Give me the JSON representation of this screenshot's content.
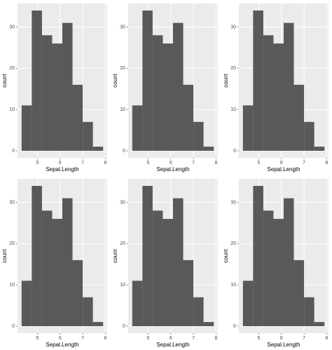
{
  "chart_data": [
    {
      "type": "histogram",
      "xlabel": "Sepal.Length",
      "ylabel": "count",
      "bins": [
        4.3,
        4.75,
        5.2,
        5.65,
        6.1,
        6.55,
        7.0,
        7.45,
        7.9
      ],
      "values": [
        11,
        34,
        28,
        26,
        31,
        16,
        7,
        1
      ],
      "color": "#595959",
      "xlim": [
        4.12,
        8.08
      ],
      "ylim": [
        -1.7,
        35.7
      ],
      "xticks": [
        5,
        6,
        7,
        8
      ],
      "yticks": [
        0,
        10,
        20,
        30
      ],
      "grid": true
    },
    {
      "type": "histogram",
      "xlabel": "Sepal.Length",
      "ylabel": "count",
      "bins": [
        4.3,
        4.75,
        5.2,
        5.65,
        6.1,
        6.55,
        7.0,
        7.45,
        7.9
      ],
      "values": [
        11,
        34,
        28,
        26,
        31,
        16,
        7,
        1
      ],
      "color": "#595959",
      "xlim": [
        4.12,
        8.08
      ],
      "ylim": [
        -1.7,
        35.7
      ],
      "xticks": [
        5,
        6,
        7,
        8
      ],
      "yticks": [
        0,
        10,
        20,
        30
      ],
      "grid": true
    },
    {
      "type": "histogram",
      "xlabel": "Sepal.Length",
      "ylabel": "count",
      "bins": [
        4.3,
        4.75,
        5.2,
        5.65,
        6.1,
        6.55,
        7.0,
        7.45,
        7.9
      ],
      "values": [
        11,
        34,
        28,
        26,
        31,
        16,
        7,
        1
      ],
      "color": "#595959",
      "xlim": [
        4.12,
        8.08
      ],
      "ylim": [
        -1.7,
        35.7
      ],
      "xticks": [
        5,
        6,
        7,
        8
      ],
      "yticks": [
        0,
        10,
        20,
        30
      ],
      "grid": true
    },
    {
      "type": "histogram",
      "xlabel": "Sepal.Length",
      "ylabel": "count",
      "bins": [
        4.3,
        4.75,
        5.2,
        5.65,
        6.1,
        6.55,
        7.0,
        7.45,
        7.9
      ],
      "values": [
        11,
        34,
        28,
        26,
        31,
        16,
        7,
        1
      ],
      "color": "#595959",
      "xlim": [
        4.12,
        8.08
      ],
      "ylim": [
        -1.7,
        35.7
      ],
      "xticks": [
        5,
        6,
        7,
        8
      ],
      "yticks": [
        0,
        10,
        20,
        30
      ],
      "grid": true
    },
    {
      "type": "histogram",
      "xlabel": "Sepal.Length",
      "ylabel": "count",
      "bins": [
        4.3,
        4.75,
        5.2,
        5.65,
        6.1,
        6.55,
        7.0,
        7.45,
        7.9
      ],
      "values": [
        11,
        34,
        28,
        26,
        31,
        16,
        7,
        1
      ],
      "color": "#595959",
      "xlim": [
        4.12,
        8.08
      ],
      "ylim": [
        -1.7,
        35.7
      ],
      "xticks": [
        5,
        6,
        7,
        8
      ],
      "yticks": [
        0,
        10,
        20,
        30
      ],
      "grid": true
    },
    {
      "type": "histogram",
      "xlabel": "Sepal.Length",
      "ylabel": "count",
      "bins": [
        4.3,
        4.75,
        5.2,
        5.65,
        6.1,
        6.55,
        7.0,
        7.45,
        7.9
      ],
      "values": [
        11,
        34,
        28,
        26,
        31,
        16,
        7,
        1
      ],
      "color": "#595959",
      "xlim": [
        4.12,
        8.08
      ],
      "ylim": [
        -1.7,
        35.7
      ],
      "xticks": [
        5,
        6,
        7,
        8
      ],
      "yticks": [
        0,
        10,
        20,
        30
      ],
      "grid": true
    }
  ]
}
